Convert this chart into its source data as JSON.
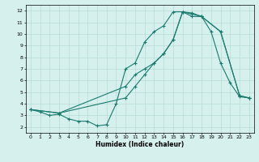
{
  "xlabel": "Humidex (Indice chaleur)",
  "bg_color": "#d6f0ee",
  "grid_color": "#b8dbd8",
  "line_color": "#1a7a6e",
  "xlim": [
    -0.5,
    23.5
  ],
  "ylim": [
    1.5,
    12.5
  ],
  "xticks": [
    0,
    1,
    2,
    3,
    4,
    5,
    6,
    7,
    8,
    9,
    10,
    11,
    12,
    13,
    14,
    15,
    16,
    17,
    18,
    19,
    20,
    21,
    22,
    23
  ],
  "yticks": [
    2,
    3,
    4,
    5,
    6,
    7,
    8,
    9,
    10,
    11,
    12
  ],
  "line1_x": [
    0,
    1,
    2,
    3,
    4,
    5,
    6,
    7,
    8,
    9,
    10,
    11,
    12,
    13,
    14,
    15,
    16,
    17,
    18,
    19,
    20,
    21,
    22,
    23
  ],
  "line1_y": [
    3.5,
    3.3,
    3.0,
    3.1,
    2.7,
    2.5,
    2.5,
    2.1,
    2.2,
    4.0,
    7.0,
    7.5,
    9.3,
    10.2,
    10.7,
    11.9,
    11.9,
    11.7,
    11.5,
    10.2,
    7.5,
    5.8,
    4.6,
    4.5
  ],
  "line2_x": [
    0,
    3,
    10,
    11,
    12,
    13,
    14,
    15,
    16,
    17,
    18,
    20,
    22,
    23
  ],
  "line2_y": [
    3.5,
    3.2,
    4.5,
    5.5,
    6.5,
    7.5,
    8.3,
    9.5,
    11.9,
    11.8,
    11.5,
    10.2,
    4.7,
    4.5
  ],
  "line3_x": [
    0,
    3,
    10,
    11,
    12,
    13,
    14,
    15,
    16,
    17,
    18,
    20,
    22,
    23
  ],
  "line3_y": [
    3.5,
    3.2,
    5.5,
    6.5,
    7.0,
    7.5,
    8.3,
    9.5,
    11.9,
    11.5,
    11.5,
    10.2,
    4.7,
    4.5
  ]
}
